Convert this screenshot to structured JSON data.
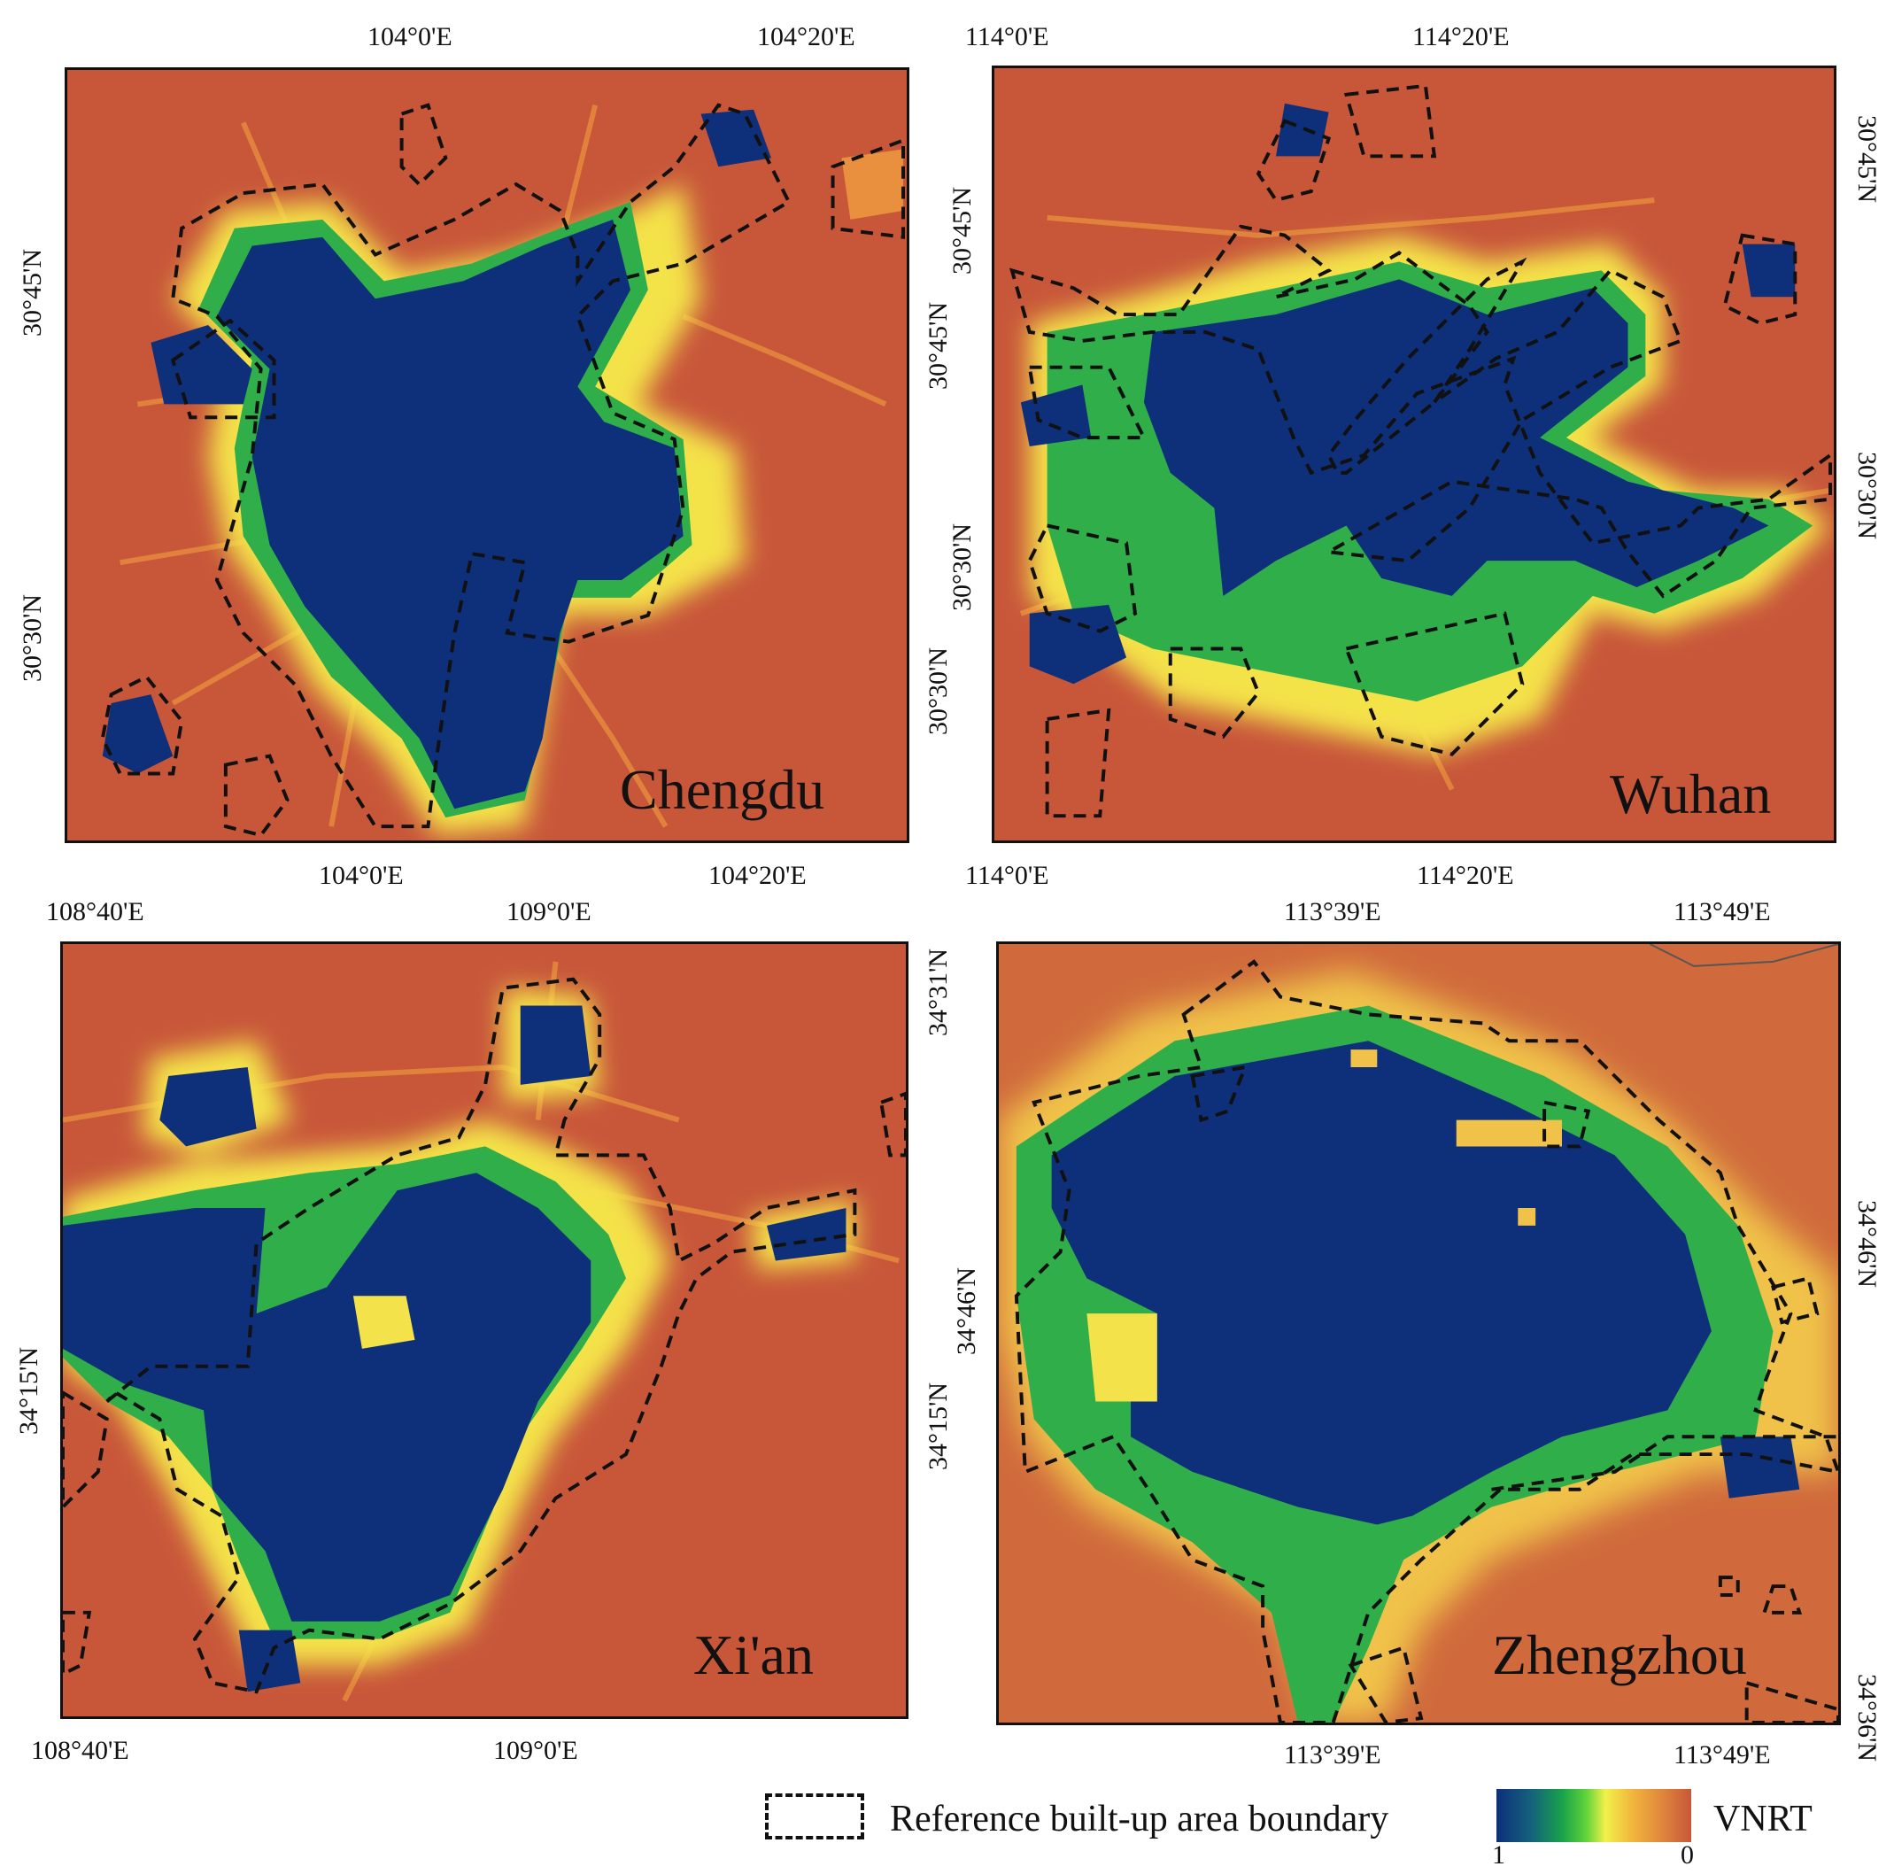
{
  "panels": [
    {
      "city": "Chengdu",
      "top_labels": [
        "104°0'E",
        "104°20'E"
      ],
      "bottom_labels": [
        "104°0'E",
        "104°20'E"
      ],
      "left_labels": [
        "30°45'N",
        "30°30'N"
      ],
      "right_labels": [
        "30°45'N",
        "30°30'N"
      ]
    },
    {
      "city": "Wuhan",
      "top_labels": [
        "114°0'E",
        "114°20'E"
      ],
      "bottom_labels": [
        "114°0'E",
        "114°20'E"
      ],
      "left_labels": [
        "30°45'N",
        "30°30'N"
      ],
      "right_labels": [
        "30°45'N",
        "30°30'N"
      ]
    },
    {
      "city": "Xi'an",
      "top_labels": [
        "108°40'E",
        "109°0'E"
      ],
      "bottom_labels": [
        "108°40'E",
        "109°0'E"
      ],
      "left_labels": [
        "34°15'N"
      ],
      "right_labels": [
        "34°31'N",
        "34°15'N"
      ]
    },
    {
      "city": "Zhengzhou",
      "top_labels": [
        "113°39'E",
        "113°49'E"
      ],
      "bottom_labels": [
        "113°39'E",
        "113°49'E"
      ],
      "left_labels": [
        "34°46'N"
      ],
      "right_labels": [
        "34°46'N",
        "34°36'N"
      ]
    }
  ],
  "legend": {
    "boundary_label": "Reference built-up area boundary",
    "ramp_title": "VNRT",
    "ramp_min": "1",
    "ramp_max": "0"
  },
  "colors": {
    "low_vnrt_background": "#c8573a",
    "high_vnrt_core": "#0e2f7a",
    "transition_green": "#1aa34a",
    "transition_yellow": "#f2f04a",
    "boundary_line": "#111111"
  }
}
